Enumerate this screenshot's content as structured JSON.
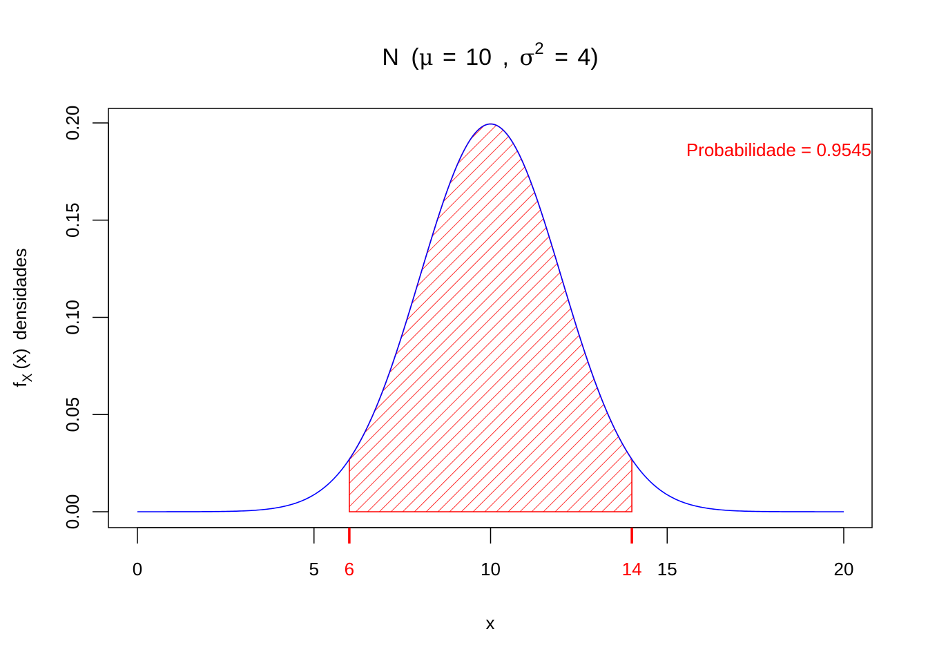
{
  "chart_data": {
    "type": "area",
    "title": {
      "prefix": "N",
      "mu_symbol": "μ",
      "mu_value": "10",
      "separator": ",",
      "sigma_symbol": "σ",
      "sigma_exponent": "2",
      "sigma_value": "4",
      "equals": "="
    },
    "xlabel": "x",
    "ylabel": {
      "f": "f",
      "subscript": "X",
      "arg": "(x)",
      "word": "densidades"
    },
    "distribution": {
      "name": "normal",
      "mean": 10,
      "variance": 4,
      "sd": 2
    },
    "xlim": [
      0,
      20
    ],
    "ylim": [
      0,
      0.2
    ],
    "x_ticks": [
      "0",
      "5",
      "10",
      "15",
      "20"
    ],
    "x_tick_values": [
      0,
      5,
      10,
      15,
      20
    ],
    "y_ticks": [
      "0.00",
      "0.05",
      "0.10",
      "0.15",
      "0.20"
    ],
    "y_tick_values": [
      0,
      0.05,
      0.1,
      0.15,
      0.2
    ],
    "shaded_interval": {
      "from": 6,
      "to": 14,
      "from_label": "6",
      "to_label": "14"
    },
    "annotation": "Probabilidade = 0.9545",
    "grid": false,
    "colors": {
      "curve": "#0000FF",
      "shade": "#FF0000",
      "axis": "#000000"
    }
  }
}
